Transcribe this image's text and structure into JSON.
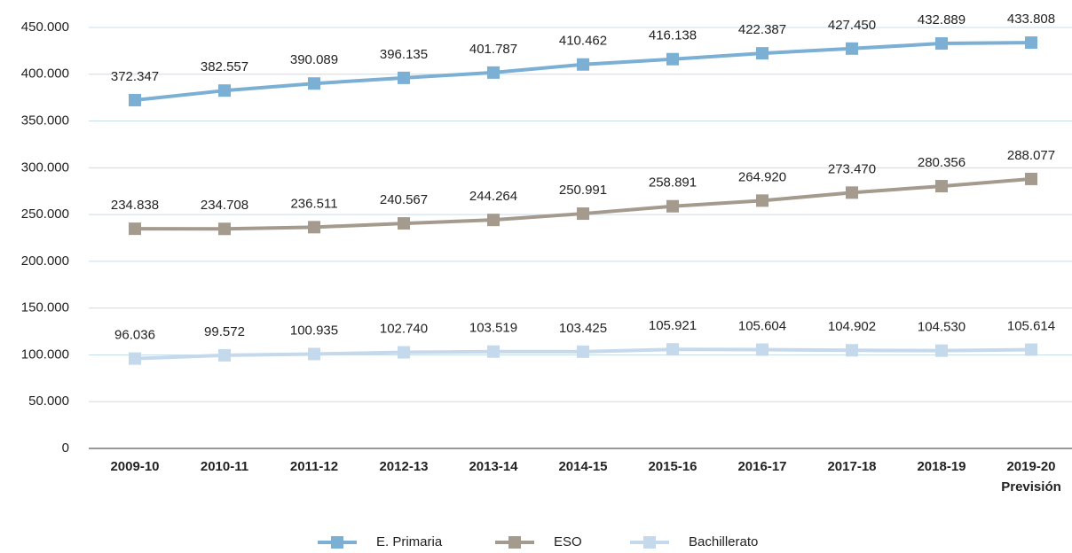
{
  "chart_data": {
    "type": "line",
    "categories": [
      "2009-10",
      "2010-11",
      "2011-12",
      "2012-13",
      "2013-14",
      "2014-15",
      "2015-16",
      "2016-17",
      "2017-18",
      "2018-19",
      "2019-20\nPrevisión"
    ],
    "series": [
      {
        "name": "E. Primaria",
        "color": "#7bafd4",
        "values": [
          372347,
          382557,
          390089,
          396135,
          401787,
          410462,
          416138,
          422387,
          427450,
          432889,
          433808
        ],
        "value_labels": [
          "372.347",
          "382.557",
          "390.089",
          "396.135",
          "401.787",
          "410.462",
          "416.138",
          "422.387",
          "427.450",
          "432.889",
          "433.808"
        ]
      },
      {
        "name": "ESO",
        "color": "#a49a8e",
        "values": [
          234838,
          234708,
          236511,
          240567,
          244264,
          250991,
          258891,
          264920,
          273470,
          280356,
          288077
        ],
        "value_labels": [
          "234.838",
          "234.708",
          "236.511",
          "240.567",
          "244.264",
          "250.991",
          "258.891",
          "264.920",
          "273.470",
          "280.356",
          "288.077"
        ]
      },
      {
        "name": "Bachillerato",
        "color": "#c5d9ec",
        "values": [
          96036,
          99572,
          100935,
          102740,
          103519,
          103425,
          105921,
          105604,
          104902,
          104530,
          105614
        ],
        "value_labels": [
          "96.036",
          "99.572",
          "100.935",
          "102.740",
          "103.519",
          "103.425",
          "105.921",
          "105.604",
          "104.902",
          "104.530",
          "105.614"
        ]
      }
    ],
    "ylim": [
      0,
      450000
    ],
    "yticks": [
      0,
      {
        "value": 50000,
        "label": "50.000"
      },
      {
        "value": 100000,
        "label": "100.000"
      },
      {
        "value": 150000,
        "label": "150.000"
      },
      {
        "value": 200000,
        "label": "200.000"
      },
      {
        "value": 250000,
        "label": "250.000"
      },
      {
        "value": 300000,
        "label": "300.000"
      },
      {
        "value": 350000,
        "label": "350.000"
      },
      {
        "value": 400000,
        "label": "400.000"
      },
      {
        "value": 450000,
        "label": "450.000"
      }
    ],
    "grid": true,
    "legend": "bottom"
  }
}
